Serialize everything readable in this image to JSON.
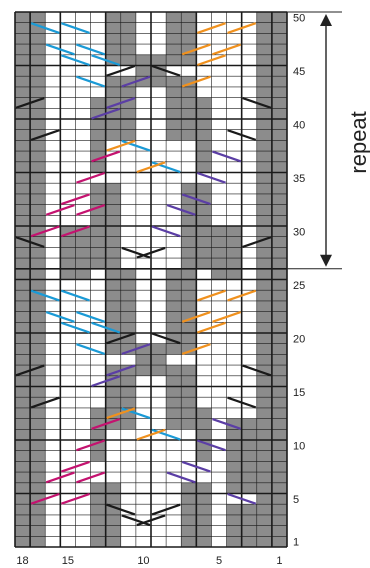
{
  "diagram": {
    "type": "knitting-chart",
    "columns": 18,
    "rows": 50,
    "column_labels": [
      "18",
      "15",
      "10",
      "5",
      "1"
    ],
    "row_labels": [
      "1",
      "5",
      "10",
      "15",
      "20",
      "25",
      "30",
      "35",
      "40",
      "45",
      "50"
    ],
    "repeat": {
      "label": "repeat",
      "from_row": 27,
      "to_row": 50
    },
    "colors": {
      "grid": "#1a1a1a",
      "shade": "#8c8c8c",
      "black_cable": "#1a1a1a",
      "blue_cable": "#1a9ad6",
      "magenta_cable": "#c4126f",
      "purple_cable": "#5b3ea5",
      "orange_cable": "#f0911e"
    }
  }
}
